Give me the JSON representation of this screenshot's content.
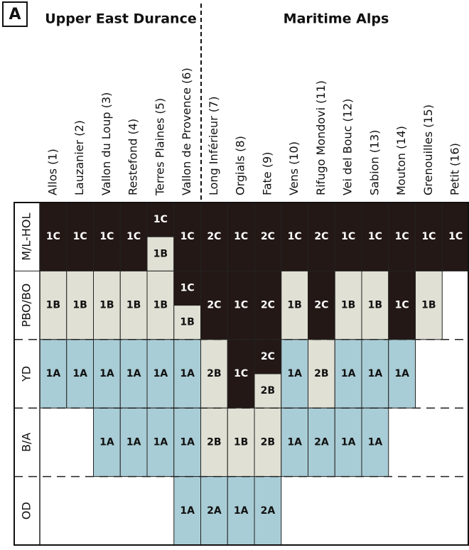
{
  "panel_label": "A",
  "regions": [
    "Upper East Durance",
    "Maritime Alps"
  ],
  "rows": [
    "M/L-HOL",
    "PBO/BO",
    "YD",
    "B/A",
    "OD"
  ],
  "columns": [
    {
      "label": "Allos (1)",
      "cells": [
        [
          "1C"
        ],
        [
          "1B"
        ],
        [
          "1A"
        ],
        [],
        []
      ]
    },
    {
      "label": "Lauzanier (2)",
      "cells": [
        [
          "1C"
        ],
        [
          "1B"
        ],
        [
          "1A"
        ],
        [],
        []
      ]
    },
    {
      "label": "Vallon du Loup (3)",
      "cells": [
        [
          "1C"
        ],
        [
          "1B"
        ],
        [
          "1A"
        ],
        [
          "1A"
        ],
        []
      ]
    },
    {
      "label": "Restefond (4)",
      "cells": [
        [
          "1C"
        ],
        [
          "1B"
        ],
        [
          "1A"
        ],
        [
          "1A"
        ],
        []
      ]
    },
    {
      "label": "Terres Plaines (5)",
      "cells": [
        [
          "1C",
          "1B"
        ],
        [
          "1B"
        ],
        [
          "1A"
        ],
        [
          "1A"
        ],
        []
      ]
    },
    {
      "label": "Vallon de Provence (6)",
      "cells": [
        [
          "1C"
        ],
        [
          "1C",
          "1B"
        ],
        [
          "1A"
        ],
        [
          "1A"
        ],
        [
          "1A"
        ]
      ]
    },
    {
      "label": "Long Inférieur (7)",
      "cells": [
        [
          "2C"
        ],
        [
          "2C"
        ],
        [
          "2B"
        ],
        [
          "2B"
        ],
        [
          "2A"
        ]
      ]
    },
    {
      "label": "Orgials (8)",
      "cells": [
        [
          "1C"
        ],
        [
          "1C"
        ],
        [
          "1C"
        ],
        [
          "1B"
        ],
        [
          "1A"
        ]
      ]
    },
    {
      "label": "Fate (9)",
      "cells": [
        [
          "2C"
        ],
        [
          "2C"
        ],
        [
          "2C",
          "2B"
        ],
        [
          "2B"
        ],
        [
          "2A"
        ]
      ]
    },
    {
      "label": "Vens (10)",
      "cells": [
        [
          "1C"
        ],
        [
          "1B"
        ],
        [
          "1A"
        ],
        [
          "1A"
        ],
        []
      ]
    },
    {
      "label": "Rifugo Mondovi (11)",
      "cells": [
        [
          "2C"
        ],
        [
          "2C"
        ],
        [
          "2B"
        ],
        [
          "2A"
        ],
        []
      ]
    },
    {
      "label": "Vei del Bouc (12)",
      "cells": [
        [
          "1C"
        ],
        [
          "1B"
        ],
        [
          "1A"
        ],
        [
          "1A"
        ],
        []
      ]
    },
    {
      "label": "Sabion (13)",
      "cells": [
        [
          "1C"
        ],
        [
          "1B"
        ],
        [
          "1A"
        ],
        [
          "1A"
        ],
        []
      ]
    },
    {
      "label": "Mouton (14)",
      "cells": [
        [
          "1C"
        ],
        [
          "1C"
        ],
        [
          "1A"
        ],
        [],
        []
      ]
    },
    {
      "label": "Grenouilles (15)",
      "cells": [
        [
          "1C"
        ],
        [
          "1B"
        ],
        [],
        [],
        []
      ]
    },
    {
      "label": "Petit (16)",
      "cells": [
        [
          "1C"
        ],
        [],
        [],
        [],
        []
      ]
    }
  ]
}
